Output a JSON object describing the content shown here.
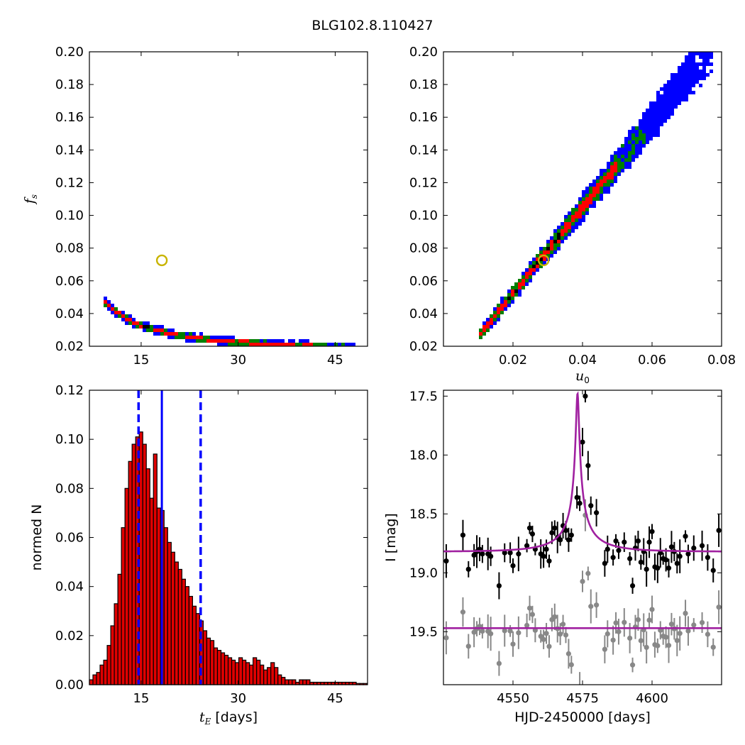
{
  "title": "BLG102.8.110427",
  "colors": {
    "level1": "#0000ff",
    "level2": "#007f00",
    "level3": "#ff0000",
    "best": "#000000",
    "marker_edge": "#c8b400",
    "hist_fill": "#e00000",
    "hist_edge": "#000000",
    "median_line": "#0000ff",
    "model": "#a020a0",
    "data_main": "#000000",
    "data_resid": "#888888"
  },
  "chart_data": [
    {
      "id": "tE_fs",
      "type": "heatmap",
      "xlabel": "",
      "ylabel": "f_s",
      "xlim": [
        7,
        50
      ],
      "ylim": [
        0.02,
        0.2
      ],
      "xticks": [
        15,
        30,
        45
      ],
      "xtick_labels": [
        "15",
        "30",
        "45"
      ],
      "yticks": [
        0.02,
        0.04,
        0.06,
        0.08,
        0.1,
        0.12,
        0.14,
        0.16,
        0.18,
        0.2
      ],
      "ytick_labels": [
        "0.02",
        "0.04",
        "0.06",
        "0.08",
        "0.10",
        "0.12",
        "0.14",
        "0.16",
        "0.18",
        "0.20"
      ],
      "best_fit": [
        18.2,
        0.0725
      ],
      "ridge": {
        "A": 0.045,
        "B": 7.2,
        "n": 1.27,
        "tmin": 9.3,
        "tmax": 48
      },
      "levels": [
        "level1",
        "level2",
        "level3",
        "best"
      ]
    },
    {
      "id": "u0_fs",
      "type": "heatmap",
      "xlabel": "u_0",
      "ylabel": "",
      "xlim": [
        0.0,
        0.08
      ],
      "ylim": [
        0.02,
        0.2
      ],
      "xticks": [
        0.02,
        0.04,
        0.06,
        0.08
      ],
      "xtick_labels": [
        "0.02",
        "0.04",
        "0.06",
        "0.08"
      ],
      "yticks": [
        0.02,
        0.04,
        0.06,
        0.08,
        0.1,
        0.12,
        0.14,
        0.16,
        0.18,
        0.2
      ],
      "ytick_labels": [
        "0.02",
        "0.04",
        "0.06",
        "0.08",
        "0.10",
        "0.12",
        "0.14",
        "0.16",
        "0.18",
        "0.20"
      ],
      "best_fit": [
        0.0288,
        0.0725
      ],
      "ridge": {
        "u0": 0.0108,
        "f0": 0.028,
        "slope": 2.63,
        "umax": 0.078
      },
      "levels": [
        "level1",
        "level2",
        "level3",
        "best"
      ]
    },
    {
      "id": "tE_hist",
      "type": "bar",
      "xlabel": "t_E  [days]",
      "ylabel": "normed N",
      "xlim": [
        7,
        50
      ],
      "ylim": [
        0,
        0.12
      ],
      "xticks": [
        15,
        30,
        45
      ],
      "xtick_labels": [
        "15",
        "30",
        "45"
      ],
      "yticks": [
        0,
        0.02,
        0.04,
        0.06,
        0.08,
        0.1,
        0.12
      ],
      "ytick_labels": [
        "0.00",
        "0.02",
        "0.04",
        "0.06",
        "0.08",
        "0.10",
        "0.12"
      ],
      "bin_start": 7.0,
      "bin_width": 0.55,
      "values": [
        0.002,
        0.004,
        0.005,
        0.008,
        0.01,
        0.016,
        0.024,
        0.033,
        0.045,
        0.064,
        0.08,
        0.091,
        0.098,
        0.101,
        0.103,
        0.098,
        0.088,
        0.076,
        0.094,
        0.072,
        0.071,
        0.064,
        0.058,
        0.054,
        0.05,
        0.047,
        0.043,
        0.04,
        0.036,
        0.032,
        0.029,
        0.026,
        0.022,
        0.019,
        0.018,
        0.015,
        0.014,
        0.013,
        0.012,
        0.011,
        0.01,
        0.009,
        0.011,
        0.01,
        0.009,
        0.008,
        0.011,
        0.01,
        0.008,
        0.006,
        0.007,
        0.009,
        0.007,
        0.004,
        0.003,
        0.002,
        0.002,
        0.002,
        0.001,
        0.002,
        0.002,
        0.002,
        0.001,
        0.001,
        0.001,
        0.001,
        0.001,
        0.001,
        0.001,
        0.001,
        0.001,
        0.001,
        0.001,
        0.001,
        0.001,
        0.0005,
        0.0005,
        0.0005
      ],
      "median": 18.2,
      "lower_bound": 14.6,
      "upper_bound": 24.2
    },
    {
      "id": "light_curve",
      "type": "scatter",
      "xlabel": "HJD-2450000 [days]",
      "ylabel": "I [mag]",
      "xlim": [
        4525,
        4625
      ],
      "ylim": [
        19.95,
        17.45
      ],
      "xticks": [
        4550,
        4575,
        4600
      ],
      "xtick_labels": [
        "4550",
        "4575",
        "4600"
      ],
      "yticks": [
        17.5,
        18.0,
        18.5,
        19.0,
        19.5
      ],
      "ytick_labels": [
        "17.5",
        "18.0",
        "18.5",
        "19.0",
        "19.5"
      ],
      "model": {
        "t0": 4573.2,
        "tE": 18.2,
        "u0": 0.0288,
        "fs": 0.0725,
        "base": 18.82
      },
      "resid_base": 19.47,
      "data_t": [
        4526,
        4532,
        4534,
        4536,
        4537,
        4538,
        4539,
        4541,
        4542,
        4545,
        4547,
        4549,
        4550,
        4552,
        4555,
        4556,
        4557,
        4558,
        4560,
        4561,
        4562,
        4563,
        4564,
        4565,
        4566,
        4567,
        4568,
        4569,
        4570,
        4571,
        4573,
        4574,
        4575,
        4576,
        4577,
        4578,
        4580,
        4583,
        4584,
        4586,
        4587,
        4588,
        4590,
        4592,
        4593,
        4594,
        4595,
        4596,
        4597,
        4598,
        4599,
        4600,
        4601,
        4602,
        4603,
        4604,
        4605,
        4606,
        4607,
        4608,
        4609,
        4610,
        4612,
        4613,
        4615,
        4618,
        4620,
        4622,
        4624
      ],
      "data_mag": [
        18.9,
        18.68,
        18.97,
        18.85,
        18.82,
        18.8,
        18.84,
        18.84,
        18.86,
        19.11,
        18.83,
        18.83,
        18.94,
        18.84,
        18.77,
        18.62,
        18.67,
        18.8,
        18.84,
        18.86,
        18.8,
        18.9,
        18.66,
        18.62,
        18.7,
        18.72,
        18.6,
        18.64,
        18.72,
        18.68,
        18.36,
        18.41,
        17.89,
        17.5,
        18.09,
        18.43,
        18.49,
        18.92,
        18.8,
        18.87,
        18.73,
        18.81,
        18.74,
        18.88,
        19.11,
        18.79,
        18.73,
        18.91,
        18.82,
        18.97,
        18.74,
        18.65,
        18.95,
        18.96,
        18.83,
        18.88,
        18.89,
        18.96,
        18.78,
        18.82,
        18.92,
        18.86,
        18.69,
        18.84,
        18.79,
        18.77,
        18.87,
        18.98,
        18.64
      ]
    }
  ]
}
